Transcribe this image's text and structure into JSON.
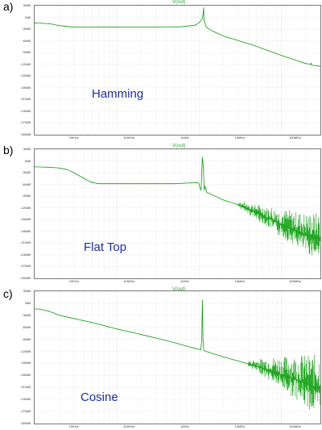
{
  "colors": {
    "trace": "#0a9e0a",
    "grid": "#c8c8c8",
    "frame": "#7a7a7a",
    "label": "#1a2fb5"
  },
  "chart_data": [
    {
      "type": "line",
      "panel_label": "a)",
      "window_label": "Hamming",
      "trace_name": "V(out)",
      "x_scale": "log",
      "xlim": [
        1000,
        3000000
      ],
      "ylim": [
        -300,
        30
      ],
      "y_ticks": [
        "30dB",
        "0dB",
        "-30dB",
        "-60dB",
        "-90dB",
        "-120dB",
        "-150dB",
        "-180dB",
        "-210dB",
        "-240dB",
        "-270dB",
        "-300dB"
      ],
      "x_ticks": [
        "10KHz",
        "100KHz",
        "1MHz",
        "10MHz",
        "100MHz",
        "1000KHz"
      ],
      "series": [
        {
          "x": [
            1000,
            1500,
            2000,
            3000,
            5000,
            10000,
            30000,
            60000,
            90000,
            100000,
            110000,
            112000,
            114000,
            115000,
            116000,
            118000,
            120000,
            130000,
            150000,
            200000,
            300000,
            500000,
            1000000,
            2000000,
            2300000,
            2310000,
            2330000,
            3000000
          ],
          "values": [
            -14,
            -16,
            -21,
            -25,
            -25,
            -25,
            -25,
            -24,
            -20,
            -14,
            -4,
            8,
            25,
            -4,
            -8,
            -12,
            -22,
            -29,
            -36,
            -48,
            -59,
            -74,
            -97,
            -118,
            -120,
            -116,
            -122,
            -125
          ]
        }
      ]
    },
    {
      "type": "line",
      "panel_label": "b)",
      "window_label": "Flat Top",
      "trace_name": "V(out)",
      "x_scale": "log",
      "xlim": [
        1000,
        3000000
      ],
      "ylim": [
        -300,
        30
      ],
      "y_ticks": [
        "30dB",
        "0dB",
        "-30dB",
        "-60dB",
        "-90dB",
        "-120dB",
        "-150dB",
        "-180dB",
        "-210dB",
        "-240dB",
        "-270dB",
        "-300dB"
      ],
      "x_ticks": [
        "10KHz",
        "100KHz",
        "1MHz",
        "10MHz",
        "100MHz",
        "1000KHz"
      ],
      "series": [
        {
          "x": [
            1000,
            1500,
            2000,
            2500,
            3000,
            4000,
            5000,
            6000,
            8000,
            10000,
            20000,
            50000,
            80000,
            95000,
            100000,
            103000,
            106000,
            108000,
            110000,
            112000,
            114000,
            116000,
            118000,
            120000,
            124000,
            130000,
            150000,
            200000,
            300000,
            500000,
            1000000,
            1500000,
            2000000,
            2500000,
            3000000
          ],
          "values": [
            -15,
            -16,
            -18,
            -22,
            -30,
            -45,
            -55,
            -58,
            -58,
            -58,
            -58,
            -58,
            -56,
            -55,
            -58,
            -70,
            -75,
            -30,
            10,
            -5,
            -40,
            -75,
            -65,
            -68,
            -80,
            -82,
            -88,
            -100,
            -112,
            -132,
            -162,
            -178,
            -190,
            -195,
            -198
          ]
        }
      ]
    },
    {
      "type": "line",
      "panel_label": "c)",
      "window_label": "Cosine",
      "trace_name": "V(out)",
      "x_scale": "log",
      "xlim": [
        1000,
        3000000
      ],
      "ylim": [
        -300,
        30
      ],
      "y_ticks": [
        "30dB",
        "0dB",
        "-30dB",
        "-60dB",
        "-90dB",
        "-120dB",
        "-150dB",
        "-180dB",
        "-210dB",
        "-240dB",
        "-270dB",
        "-300dB"
      ],
      "x_ticks": [
        "10KHz",
        "100KHz",
        "1MHz",
        "10MHz",
        "100MHz",
        "1000KHz"
      ],
      "series": [
        {
          "x": [
            1000,
            1200,
            1500,
            2000,
            3000,
            5000,
            10000,
            20000,
            50000,
            80000,
            100000,
            105000,
            108000,
            110000,
            112000,
            114000,
            116000,
            118000,
            120000,
            130000,
            200000,
            300000,
            500000,
            800000,
            1000000,
            1500000,
            2000000,
            2500000,
            3000000
          ],
          "values": [
            -14,
            -15,
            -20,
            -30,
            -38,
            -48,
            -64,
            -78,
            -98,
            -110,
            -115,
            -116,
            -90,
            8,
            -90,
            -117,
            -118,
            -119,
            -120,
            -122,
            -134,
            -144,
            -157,
            -170,
            -178,
            -190,
            -200,
            -210,
            -212
          ]
        }
      ]
    }
  ]
}
